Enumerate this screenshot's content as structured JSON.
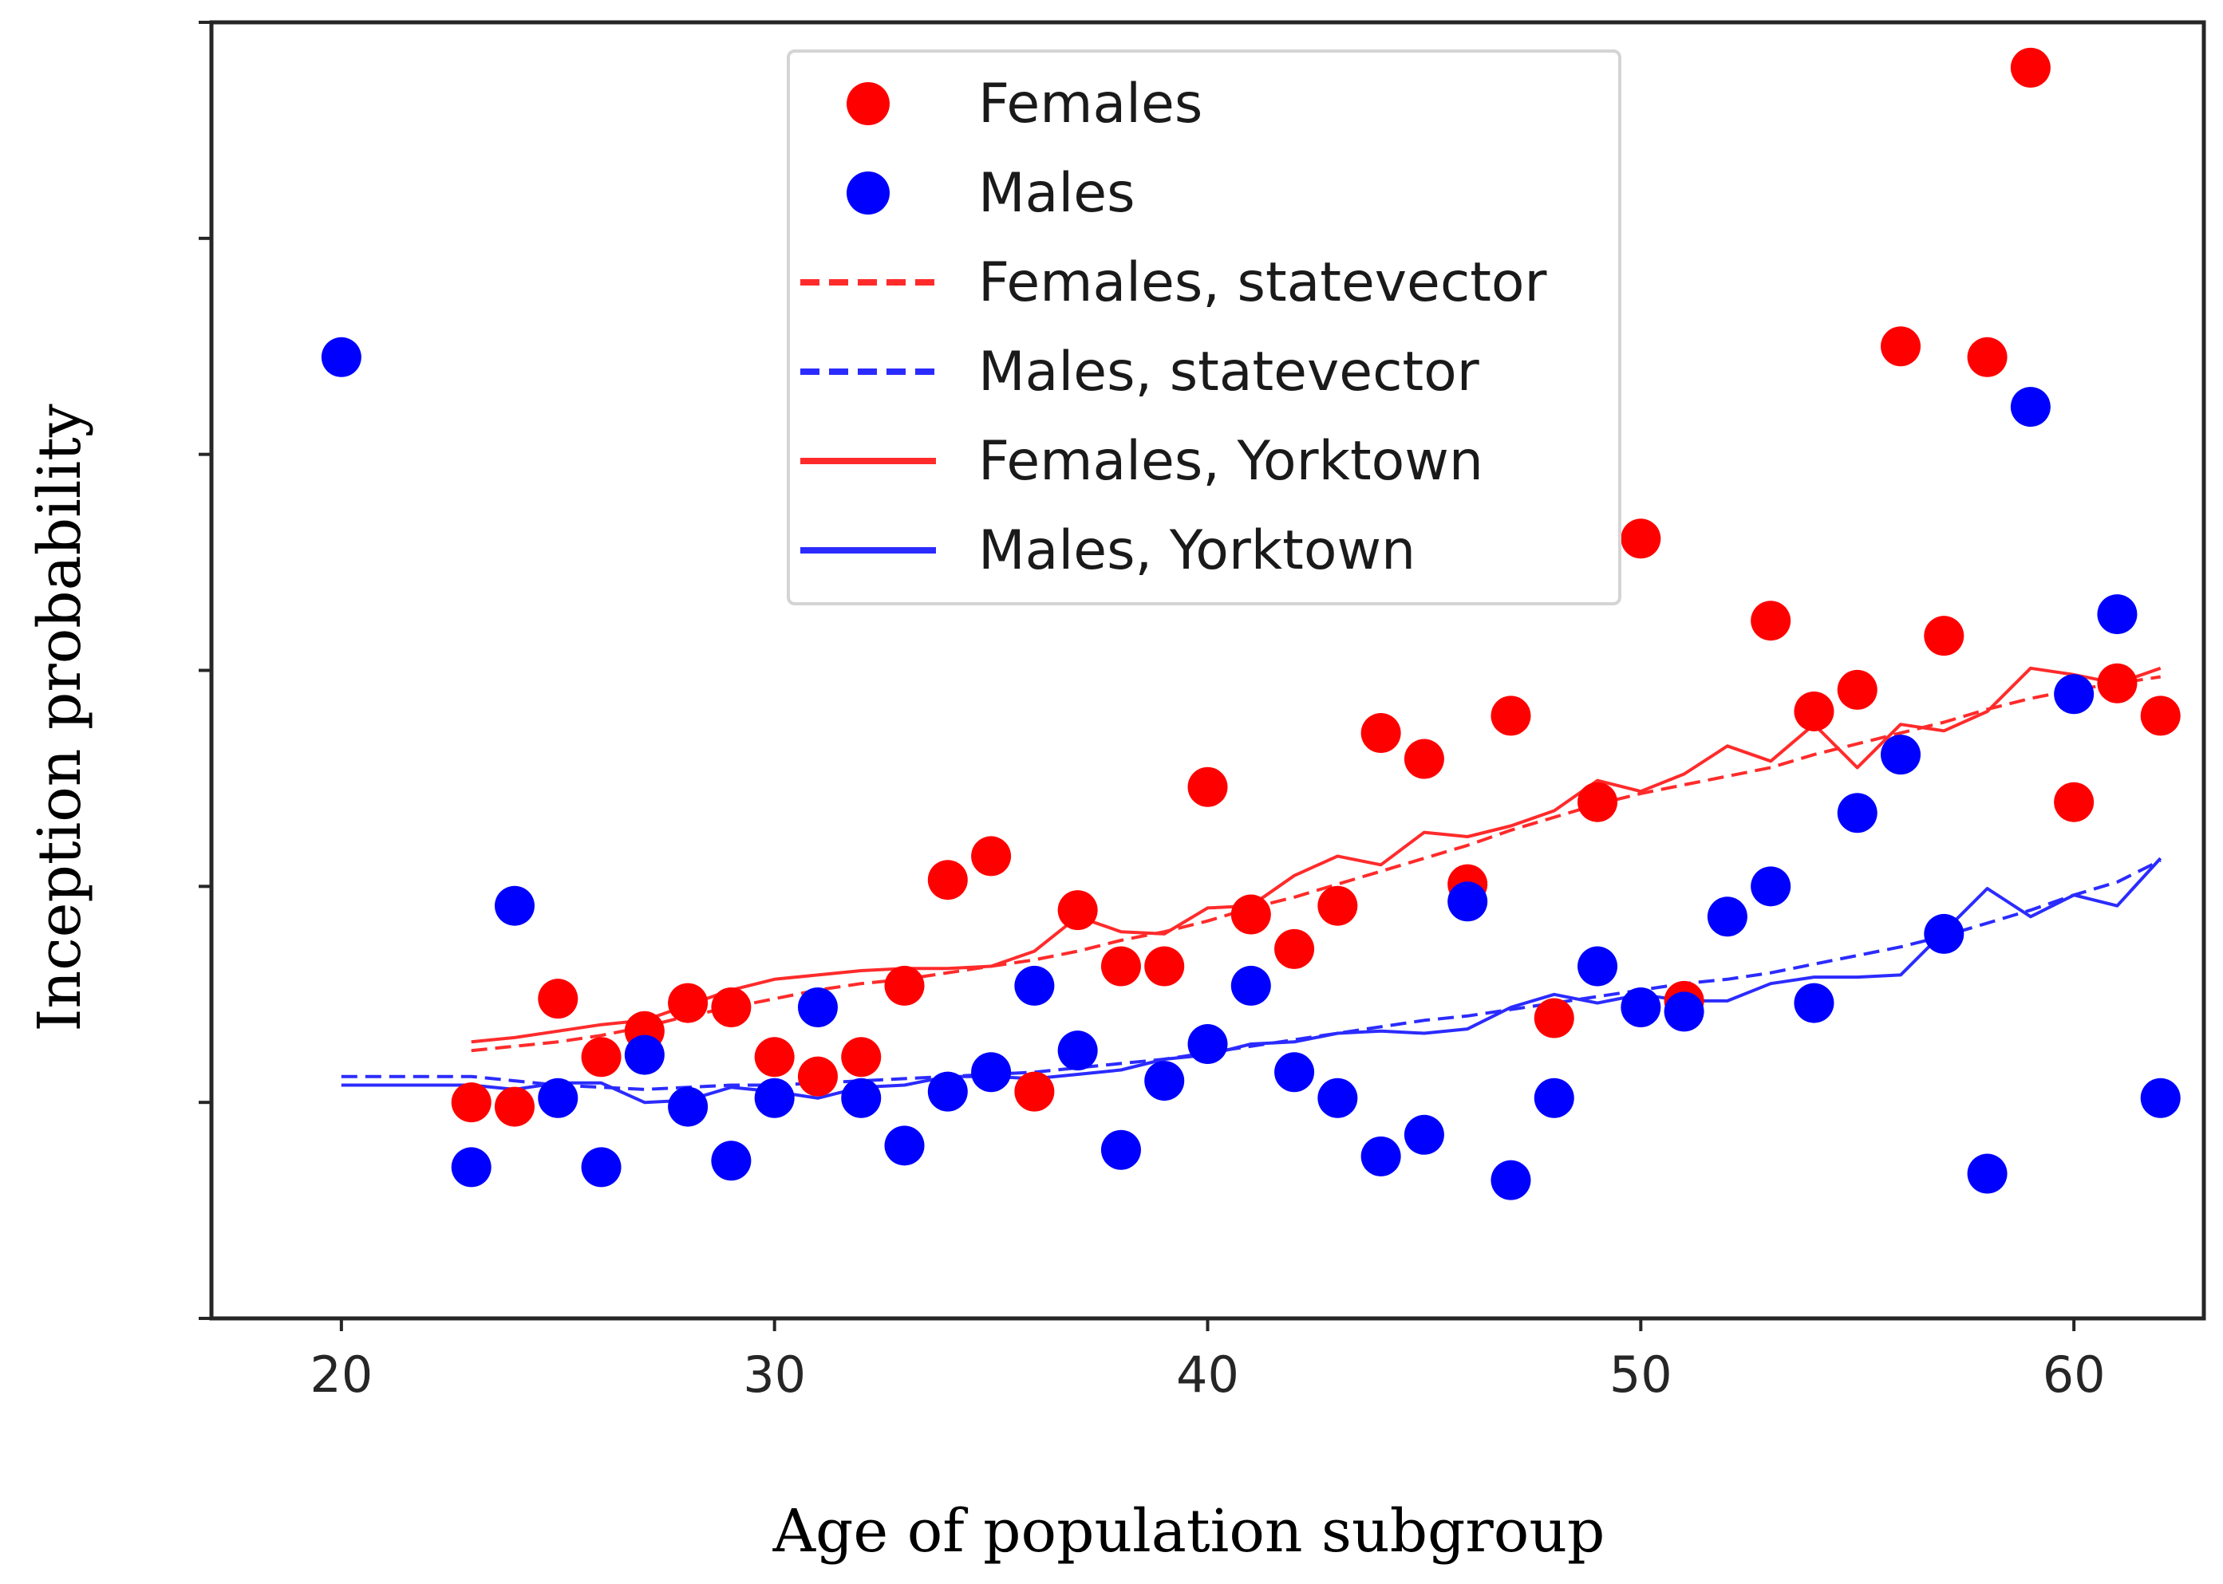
{
  "chart_data": {
    "type": "scatter",
    "title": "",
    "xlabel": "Age of population subgroup",
    "ylabel": "Inception probability",
    "xlim": [
      17,
      63
    ],
    "ylim": [
      0,
      6
    ],
    "x_ticks": [
      20,
      30,
      40,
      50,
      60
    ],
    "x_tick_labels": [
      "20",
      "30",
      "40",
      "50",
      "60"
    ],
    "y_ticks": [
      0,
      1,
      2,
      3,
      4,
      5,
      6
    ],
    "y_tick_labels": [
      "",
      "",
      "",
      "",
      "",
      "",
      ""
    ],
    "grid": false,
    "legend_position": "top-center",
    "colors": {
      "female": "#ff0000",
      "male": "#0000ff",
      "female_line": "#ff2b2b",
      "male_line": "#2b2bff",
      "axis": "#262626"
    },
    "legend": [
      {
        "label": "Females",
        "marker": "dot",
        "color": "#ff0000"
      },
      {
        "label": "Males",
        "marker": "dot",
        "color": "#0000ff"
      },
      {
        "label": "Females, statevector",
        "marker": "dashed",
        "color": "#ff2b2b"
      },
      {
        "label": "Males, statevector",
        "marker": "dashed",
        "color": "#2b2bff"
      },
      {
        "label": "Females, Yorktown",
        "marker": "solid",
        "color": "#ff2b2b"
      },
      {
        "label": "Males, Yorktown",
        "marker": "solid",
        "color": "#2b2bff"
      }
    ],
    "scatter_series": [
      {
        "name": "Females",
        "color": "#ff0000",
        "points": [
          [
            23,
            1.0
          ],
          [
            24,
            0.98
          ],
          [
            25,
            1.48
          ],
          [
            26,
            1.21
          ],
          [
            27,
            1.33
          ],
          [
            28,
            1.46
          ],
          [
            29,
            1.44
          ],
          [
            30,
            1.21
          ],
          [
            31,
            1.12
          ],
          [
            32,
            1.21
          ],
          [
            33,
            1.54
          ],
          [
            34,
            2.03
          ],
          [
            35,
            2.14
          ],
          [
            36,
            1.05
          ],
          [
            37,
            1.89
          ],
          [
            38,
            1.63
          ],
          [
            39,
            1.63
          ],
          [
            40,
            2.46
          ],
          [
            41,
            1.87
          ],
          [
            42,
            1.71
          ],
          [
            43,
            1.91
          ],
          [
            44,
            2.71
          ],
          [
            45,
            2.59
          ],
          [
            46,
            2.01
          ],
          [
            47,
            2.79
          ],
          [
            48,
            1.39
          ],
          [
            49,
            2.39
          ],
          [
            50,
            3.61
          ],
          [
            51,
            1.47
          ],
          [
            53,
            3.23
          ],
          [
            54,
            2.81
          ],
          [
            55,
            2.91
          ],
          [
            56,
            4.5
          ],
          [
            57,
            3.16
          ],
          [
            58,
            4.45
          ],
          [
            59,
            5.79
          ],
          [
            60,
            2.39
          ],
          [
            61,
            2.94
          ],
          [
            62,
            2.79
          ]
        ]
      },
      {
        "name": "Males",
        "color": "#0000ff",
        "points": [
          [
            20,
            4.45
          ],
          [
            23,
            0.7
          ],
          [
            24,
            1.91
          ],
          [
            25,
            1.02
          ],
          [
            26,
            0.7
          ],
          [
            27,
            1.22
          ],
          [
            28,
            0.98
          ],
          [
            29,
            0.73
          ],
          [
            30,
            1.02
          ],
          [
            31,
            1.44
          ],
          [
            32,
            1.02
          ],
          [
            33,
            0.8
          ],
          [
            34,
            1.05
          ],
          [
            35,
            1.14
          ],
          [
            36,
            1.54
          ],
          [
            37,
            1.24
          ],
          [
            38,
            0.78
          ],
          [
            39,
            1.1
          ],
          [
            40,
            1.27
          ],
          [
            41,
            1.54
          ],
          [
            42,
            1.14
          ],
          [
            43,
            1.02
          ],
          [
            44,
            0.75
          ],
          [
            45,
            0.85
          ],
          [
            46,
            1.93
          ],
          [
            47,
            0.64
          ],
          [
            48,
            1.02
          ],
          [
            49,
            1.63
          ],
          [
            50,
            1.44
          ],
          [
            51,
            1.42
          ],
          [
            52,
            1.86
          ],
          [
            53,
            2.0
          ],
          [
            54,
            1.46
          ],
          [
            55,
            2.34
          ],
          [
            56,
            2.61
          ],
          [
            57,
            1.78
          ],
          [
            58,
            0.67
          ],
          [
            59,
            4.22
          ],
          [
            60,
            2.89
          ],
          [
            61,
            3.26
          ],
          [
            62,
            1.02
          ]
        ]
      }
    ],
    "line_series": [
      {
        "name": "Females, statevector",
        "color": "#ff2b2b",
        "dash": true,
        "x": [
          23,
          24,
          25,
          26,
          27,
          28,
          29,
          30,
          31,
          32,
          33,
          34,
          35,
          36,
          37,
          38,
          39,
          40,
          41,
          42,
          43,
          44,
          45,
          46,
          47,
          48,
          49,
          50,
          51,
          52,
          53,
          54,
          55,
          56,
          57,
          58,
          59,
          60,
          61,
          62
        ],
        "y": [
          1.24,
          1.26,
          1.28,
          1.31,
          1.35,
          1.4,
          1.44,
          1.48,
          1.52,
          1.55,
          1.57,
          1.6,
          1.63,
          1.66,
          1.7,
          1.75,
          1.79,
          1.84,
          1.9,
          1.95,
          2.01,
          2.07,
          2.13,
          2.19,
          2.26,
          2.32,
          2.38,
          2.43,
          2.47,
          2.51,
          2.55,
          2.61,
          2.66,
          2.71,
          2.76,
          2.82,
          2.87,
          2.91,
          2.94,
          2.97
        ]
      },
      {
        "name": "Males, statevector",
        "color": "#2b2bff",
        "dash": true,
        "x": [
          20,
          21,
          22,
          23,
          24,
          25,
          26,
          27,
          28,
          29,
          30,
          31,
          32,
          33,
          34,
          35,
          36,
          37,
          38,
          39,
          40,
          41,
          42,
          43,
          44,
          45,
          46,
          47,
          48,
          49,
          50,
          51,
          52,
          53,
          54,
          55,
          56,
          57,
          58,
          59,
          60,
          61,
          62
        ],
        "y": [
          1.12,
          1.12,
          1.12,
          1.12,
          1.1,
          1.08,
          1.07,
          1.06,
          1.07,
          1.08,
          1.08,
          1.09,
          1.1,
          1.11,
          1.12,
          1.13,
          1.14,
          1.16,
          1.18,
          1.2,
          1.23,
          1.26,
          1.29,
          1.32,
          1.35,
          1.38,
          1.4,
          1.43,
          1.46,
          1.49,
          1.52,
          1.55,
          1.57,
          1.6,
          1.64,
          1.68,
          1.72,
          1.77,
          1.83,
          1.89,
          1.96,
          2.02,
          2.12
        ]
      },
      {
        "name": "Females, Yorktown",
        "color": "#ff2b2b",
        "dash": false,
        "x": [
          23,
          24,
          25,
          26,
          27,
          28,
          29,
          30,
          31,
          32,
          33,
          34,
          35,
          36,
          37,
          38,
          39,
          40,
          41,
          42,
          43,
          44,
          45,
          46,
          47,
          48,
          49,
          50,
          51,
          52,
          53,
          54,
          55,
          56,
          57,
          58,
          59,
          60,
          61,
          62
        ],
        "y": [
          1.28,
          1.3,
          1.33,
          1.36,
          1.38,
          1.45,
          1.52,
          1.57,
          1.59,
          1.61,
          1.62,
          1.62,
          1.63,
          1.7,
          1.86,
          1.79,
          1.78,
          1.9,
          1.91,
          2.05,
          2.14,
          2.1,
          2.25,
          2.23,
          2.28,
          2.35,
          2.49,
          2.44,
          2.52,
          2.65,
          2.58,
          2.75,
          2.55,
          2.75,
          2.72,
          2.81,
          3.01,
          2.98,
          2.94,
          3.01
        ]
      },
      {
        "name": "Males, Yorktown",
        "color": "#2b2bff",
        "dash": false,
        "x": [
          20,
          21,
          22,
          23,
          24,
          25,
          26,
          27,
          28,
          29,
          30,
          31,
          32,
          33,
          34,
          35,
          36,
          37,
          38,
          39,
          40,
          41,
          42,
          43,
          44,
          45,
          46,
          47,
          48,
          49,
          50,
          51,
          52,
          53,
          54,
          55,
          56,
          57,
          58,
          59,
          60,
          61,
          62
        ],
        "y": [
          1.08,
          1.08,
          1.08,
          1.08,
          1.06,
          1.09,
          1.09,
          1.0,
          1.01,
          1.07,
          1.05,
          1.02,
          1.07,
          1.08,
          1.12,
          1.12,
          1.11,
          1.13,
          1.15,
          1.2,
          1.22,
          1.27,
          1.28,
          1.32,
          1.33,
          1.32,
          1.34,
          1.44,
          1.5,
          1.46,
          1.5,
          1.47,
          1.47,
          1.55,
          1.58,
          1.58,
          1.59,
          1.79,
          1.99,
          1.86,
          1.96,
          1.91,
          2.13
        ]
      }
    ]
  }
}
